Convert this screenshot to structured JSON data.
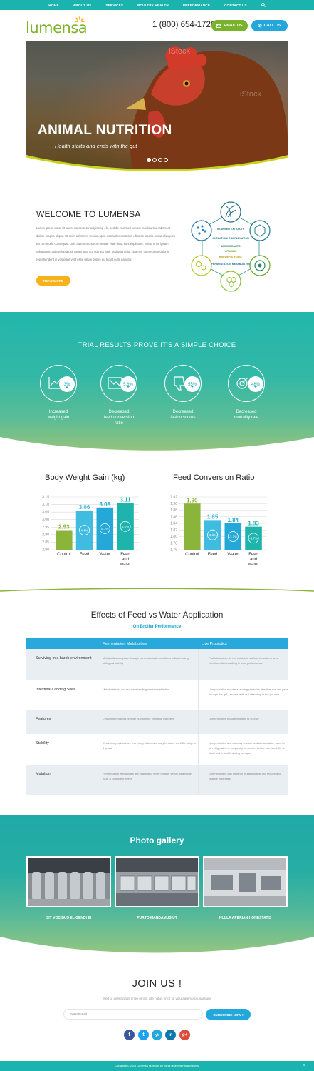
{
  "nav": {
    "items": [
      "HOME",
      "ABOUT US",
      "SERVICES",
      "POULTRY HEALTH",
      "PERFORMANCE",
      "CONTACT US"
    ],
    "search_icon": "search-icon"
  },
  "header": {
    "logo": "lumensa",
    "phone": "1 (800) 654-1726",
    "email_btn": "EMAIL US",
    "call_btn": "CALL US"
  },
  "hero": {
    "title": "ANIMAL NUTRITION",
    "subtitle": "Health starts and ends with the gut",
    "slides": 4,
    "active_slide": 1,
    "watermark": "iStock"
  },
  "welcome": {
    "title": "WELCOME TO LUMENSA",
    "body": "Lorem ipsum dolor sit amet, consectetur adipiscing elit, sed do eiusmod tempor incididunt ut labore et dolore magna aliqua. Ut enim ad minim veniam, quis nostrud exercitation ullamco laboris nisi ut aliquip ex ea commodo consequat. Duis autem architecto beatae vitae dicta sunt explicabo. Nemo enim ipsam voluptatem quia voluptas sit aspernatur aut odit aut fugit, sed quia dolor sit amet, consectetur dolor in reprehenderit in voluptate velit esse cillum dolore eu fugiat nulla pariatur.",
    "button": "READ MORE",
    "diagram": [
      "SEAWEED EXTRACTS",
      "CHELATION/ COMPLEXATION",
      "ANTIOXIDANTS",
      "VITAMINS",
      "BREWER'S YEAST",
      "FERMENTATION METABOLITES"
    ]
  },
  "trial": {
    "title": "TRIAL RESULTS PROVE IT'S A SIMPLE CHOICE",
    "items": [
      {
        "value": "3%",
        "label1": "Increased",
        "label2": "weight gain",
        "label3": "",
        "icon": "line-chart-icon"
      },
      {
        "value": "5.8%",
        "label1": "Decreased",
        "label2": "feed conversion",
        "label3": "ratio",
        "icon": "down-chart-icon"
      },
      {
        "value": "55%",
        "label1": "Decreased",
        "label2": "lesion scores",
        "label3": "",
        "icon": "thumbs-down-icon"
      },
      {
        "value": "48%",
        "label1": "Decreased",
        "label2": "mortality rate",
        "label3": "",
        "icon": "target-icon"
      }
    ]
  },
  "chart_data": [
    {
      "type": "bar",
      "title": "Body Weight Gain (kg)",
      "categories": [
        "Control",
        "Feed",
        "Water",
        "Feed and water"
      ],
      "values": [
        2.93,
        3.06,
        3.08,
        3.11
      ],
      "bar_labels": [
        "",
        "4.4%",
        "5.1%",
        "6.1%"
      ],
      "ylim": [
        2.8,
        3.15
      ],
      "yticks": [
        "3.15",
        "3.10",
        "3.05",
        "3.00",
        "2.95",
        "2.90",
        "2.85",
        "2.80"
      ],
      "colors": [
        "#8ab43a",
        "#3fbce0",
        "#23a8d8",
        "#1eb4ae"
      ],
      "grid": true
    },
    {
      "type": "bar",
      "title": "Feed Conversion Ratio",
      "categories": [
        "Control",
        "Feed",
        "Water",
        "Feed and water"
      ],
      "values": [
        1.9,
        1.85,
        1.84,
        1.83
      ],
      "bar_labels": [
        "",
        "-2.6%",
        "-3.2%",
        "-3.7%"
      ],
      "ylim": [
        1.76,
        1.92
      ],
      "yticks": [
        "1.92",
        "1.90",
        "1.88",
        "1.86",
        "1.84",
        "1.82",
        "1.80",
        "1.78",
        "1.76"
      ],
      "colors": [
        "#8ab43a",
        "#3fbce0",
        "#23a8d8",
        "#1eb4ae"
      ],
      "grid": true
    }
  ],
  "effects": {
    "title": "Effects of Feed vs Water Application",
    "subtitle": "On Broiler Performance",
    "headers": [
      "",
      "Fermentation Metabolites",
      "Live Probiotics"
    ],
    "rows": [
      {
        "feature": "Surviving in a harsh environment",
        "fm": "Metabolites can pass through harsh stomach conditions without losing biological activity",
        "lp": "Probiotics often do not survive in sufficient numbers to be effective often resulting in poor performance"
      },
      {
        "feature": "Intestinal Landing Sites",
        "fm": "Metabolites do not require a landing site to be effective",
        "lp": "Live probiotics require a landing site to be effective and can pass through the gut, unused, with out attaching to the gut wall"
      },
      {
        "feature": "Features",
        "fm": "Cytozyme products provide nutrition for intestinal microbes",
        "lp": "Live probiotics require nutrition to survive"
      },
      {
        "feature": "Stability",
        "fm": "Cytozyme products are extremely stable and easy to store, shelf life of up to 3 years",
        "lp": "Live probiotics are not easy to store and are unstable, need to be refrigerated or frequently fermented before use, shelf life is short and unstable during transport"
      },
      {
        "feature": "Mutation",
        "fm": "Fermentation metabolites are stable and never mutate, which means the have a consistent effect",
        "lp": "Live Probiotics can undergo mutations that can reduce and change their effect"
      }
    ]
  },
  "gallery": {
    "title": "Photo gallery",
    "items": [
      "SIT VOCIBUS ELIGENDI EI",
      "PURTO MANDAMUS UT",
      "NULLA APERIAN HONESTATIS"
    ]
  },
  "join": {
    "title": "JOIN US !",
    "subtitle": "Sed ut perspiciatis unde omnis iste natus error sit voluptatem accusantium",
    "placeholder": "Enter Email",
    "button": "SUBSCRIBE NOW !",
    "social": [
      "f",
      "t",
      "yt",
      "in",
      "g+"
    ]
  },
  "footer": {
    "text": "Copyright © 2018 Lumensa Nutrition. All rights reserved Privacy policy",
    "corner": "Ci"
  },
  "colors": {
    "teal": "#1bb3ad",
    "green": "#79b32b",
    "blue": "#24a7da",
    "yellow": "#f6b21b"
  }
}
